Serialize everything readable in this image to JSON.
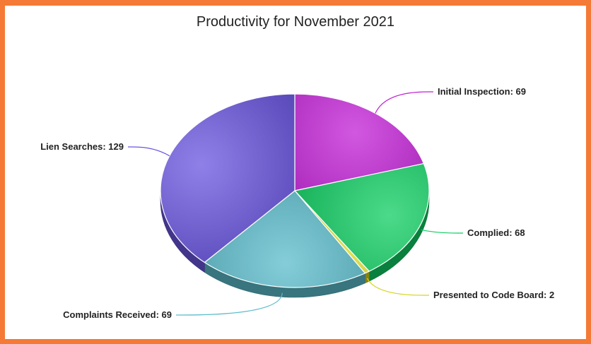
{
  "chart_data": {
    "type": "pie",
    "title": "Productivity for November 2021",
    "style": "3d",
    "legend": "none",
    "slices": [
      {
        "label": "Initial Inspection",
        "value": 69,
        "color": "#c21fd6"
      },
      {
        "label": "Complied",
        "value": 68,
        "color": "#0fce62"
      },
      {
        "label": "Presented to Code Board",
        "value": 2,
        "color": "#d6d41c"
      },
      {
        "label": "Complaints Received",
        "value": 69,
        "color": "#5bbccc"
      },
      {
        "label": "Lien Searches",
        "value": 129,
        "color": "#6a56e0"
      }
    ],
    "data_labels": [
      "Initial Inspection: 69",
      "Complied: 68",
      "Presented to Code Board: 2",
      "Complaints Received: 69",
      "Lien Searches: 129"
    ]
  }
}
